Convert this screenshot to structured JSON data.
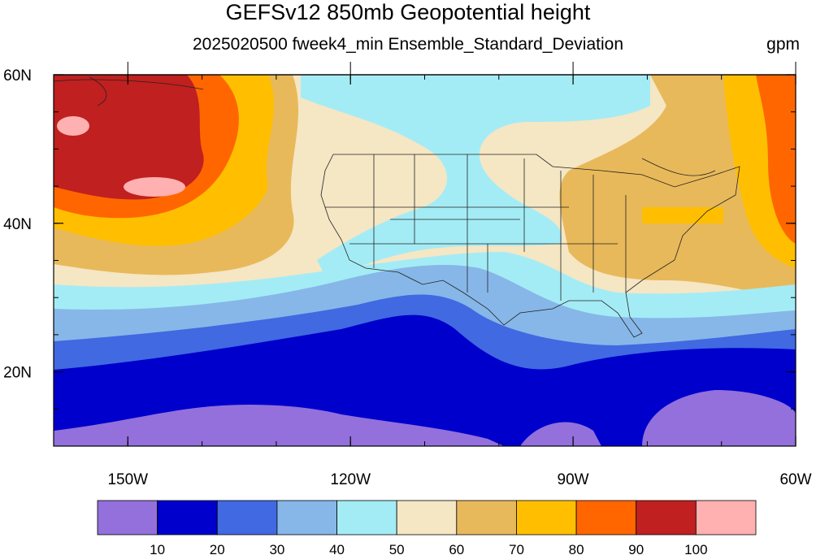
{
  "title": "GEFSv12 850mb Geopotential height",
  "subtitle": "2025020500 fweek4_min Ensemble_Standard_Deviation",
  "units": "gpm",
  "map": {
    "lat_range": [
      10,
      60
    ],
    "lon_range": [
      -160,
      -60
    ],
    "lat_ticks": [
      {
        "value": 60,
        "label": "60N"
      },
      {
        "value": 40,
        "label": "40N"
      },
      {
        "value": 20,
        "label": "20N"
      }
    ],
    "lon_ticks": [
      {
        "value": -150,
        "label": "150W"
      },
      {
        "value": -120,
        "label": "120W"
      },
      {
        "value": -90,
        "label": "90W"
      },
      {
        "value": -60,
        "label": "60W"
      }
    ]
  },
  "colorbar": {
    "colors": [
      "#9370db",
      "#0000cd",
      "#4169e1",
      "#87b7e8",
      "#a4ecf5",
      "#f5e6c4",
      "#e8b95a",
      "#ffbf00",
      "#ff6600",
      "#c02020",
      "#ffb0b0"
    ],
    "labels": [
      "10",
      "20",
      "30",
      "40",
      "50",
      "60",
      "70",
      "80",
      "90",
      "100"
    ]
  }
}
